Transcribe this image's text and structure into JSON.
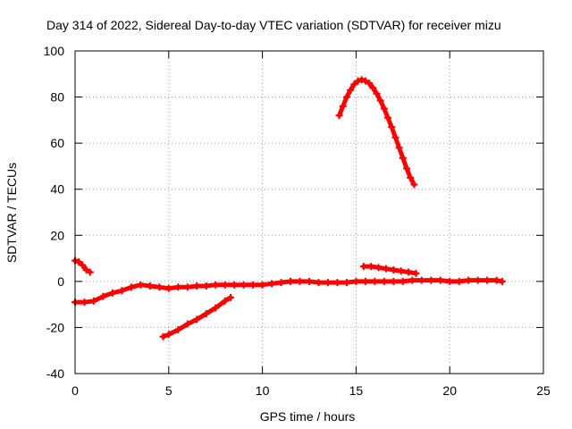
{
  "chart_data": {
    "type": "scatter",
    "title": "Day 314 of 2022, Sidereal Day-to-day VTEC variation (SDTVAR) for receiver mizu",
    "xlabel": "GPS time / hours",
    "ylabel": "SDTVAR / TECUs",
    "xlim": [
      0,
      25
    ],
    "ylim": [
      -40,
      100
    ],
    "xticks": [
      0,
      5,
      10,
      15,
      20,
      25
    ],
    "yticks": [
      -40,
      -20,
      0,
      20,
      40,
      60,
      80,
      100
    ],
    "grid": true,
    "color": "#ff0000",
    "series": [
      {
        "name": "main-baseline",
        "points": [
          [
            0.0,
            -9
          ],
          [
            0.5,
            -9
          ],
          [
            1.0,
            -8.5
          ],
          [
            1.5,
            -6.5
          ],
          [
            2.0,
            -5
          ],
          [
            2.5,
            -4
          ],
          [
            3.0,
            -2.5
          ],
          [
            3.5,
            -1.5
          ],
          [
            4.0,
            -2
          ],
          [
            4.5,
            -2.5
          ],
          [
            5.0,
            -3
          ],
          [
            5.5,
            -2.5
          ],
          [
            6.0,
            -2.5
          ],
          [
            6.5,
            -2
          ],
          [
            7.0,
            -2
          ],
          [
            7.5,
            -1.5
          ],
          [
            8.0,
            -1.5
          ],
          [
            8.5,
            -1.5
          ],
          [
            9.0,
            -1.5
          ],
          [
            9.5,
            -1.5
          ],
          [
            10.0,
            -1.5
          ],
          [
            10.5,
            -1
          ],
          [
            11.0,
            -0.5
          ],
          [
            11.5,
            0
          ],
          [
            12.0,
            0
          ],
          [
            12.5,
            0
          ],
          [
            13.0,
            -0.5
          ],
          [
            13.5,
            -0.5
          ],
          [
            14.0,
            -0.5
          ],
          [
            14.5,
            -0.5
          ],
          [
            15.0,
            0
          ],
          [
            15.5,
            0
          ],
          [
            16.0,
            0
          ],
          [
            16.5,
            0
          ],
          [
            17.0,
            0
          ],
          [
            17.5,
            0
          ],
          [
            18.0,
            0.5
          ],
          [
            18.5,
            0.5
          ],
          [
            19.0,
            0.5
          ],
          [
            19.5,
            0.5
          ],
          [
            20.0,
            0
          ],
          [
            20.5,
            0
          ],
          [
            21.0,
            0.5
          ],
          [
            21.5,
            0.5
          ],
          [
            22.0,
            0.5
          ],
          [
            22.5,
            0.5
          ],
          [
            22.8,
            0
          ]
        ]
      },
      {
        "name": "early-decline",
        "points": [
          [
            0.0,
            9
          ],
          [
            0.2,
            8.5
          ],
          [
            0.4,
            7
          ],
          [
            0.6,
            5
          ],
          [
            0.8,
            4
          ]
        ]
      },
      {
        "name": "morning-rise",
        "points": [
          [
            4.7,
            -24
          ],
          [
            5.0,
            -23
          ],
          [
            5.5,
            -21
          ],
          [
            6.0,
            -18.5
          ],
          [
            6.5,
            -16.5
          ],
          [
            7.0,
            -14
          ],
          [
            7.5,
            -11.5
          ],
          [
            8.0,
            -8.5
          ],
          [
            8.3,
            -7
          ]
        ]
      },
      {
        "name": "peak-arc",
        "points": [
          [
            14.1,
            72
          ],
          [
            14.3,
            76
          ],
          [
            14.5,
            80
          ],
          [
            14.7,
            83
          ],
          [
            14.9,
            85.5
          ],
          [
            15.1,
            87
          ],
          [
            15.3,
            87.5
          ],
          [
            15.5,
            87
          ],
          [
            15.7,
            86
          ],
          [
            15.9,
            84
          ],
          [
            16.1,
            81.5
          ],
          [
            16.3,
            78.5
          ],
          [
            16.5,
            75
          ],
          [
            16.7,
            71
          ],
          [
            16.9,
            67
          ],
          [
            17.1,
            62.5
          ],
          [
            17.3,
            58
          ],
          [
            17.5,
            53.5
          ],
          [
            17.7,
            49
          ],
          [
            17.9,
            45
          ],
          [
            18.1,
            42
          ]
        ]
      },
      {
        "name": "afternoon-decline",
        "points": [
          [
            15.4,
            6.5
          ],
          [
            15.8,
            6.5
          ],
          [
            16.2,
            6
          ],
          [
            16.6,
            5.5
          ],
          [
            17.0,
            5
          ],
          [
            17.4,
            4.5
          ],
          [
            17.8,
            4
          ],
          [
            18.2,
            3.5
          ]
        ]
      }
    ]
  }
}
